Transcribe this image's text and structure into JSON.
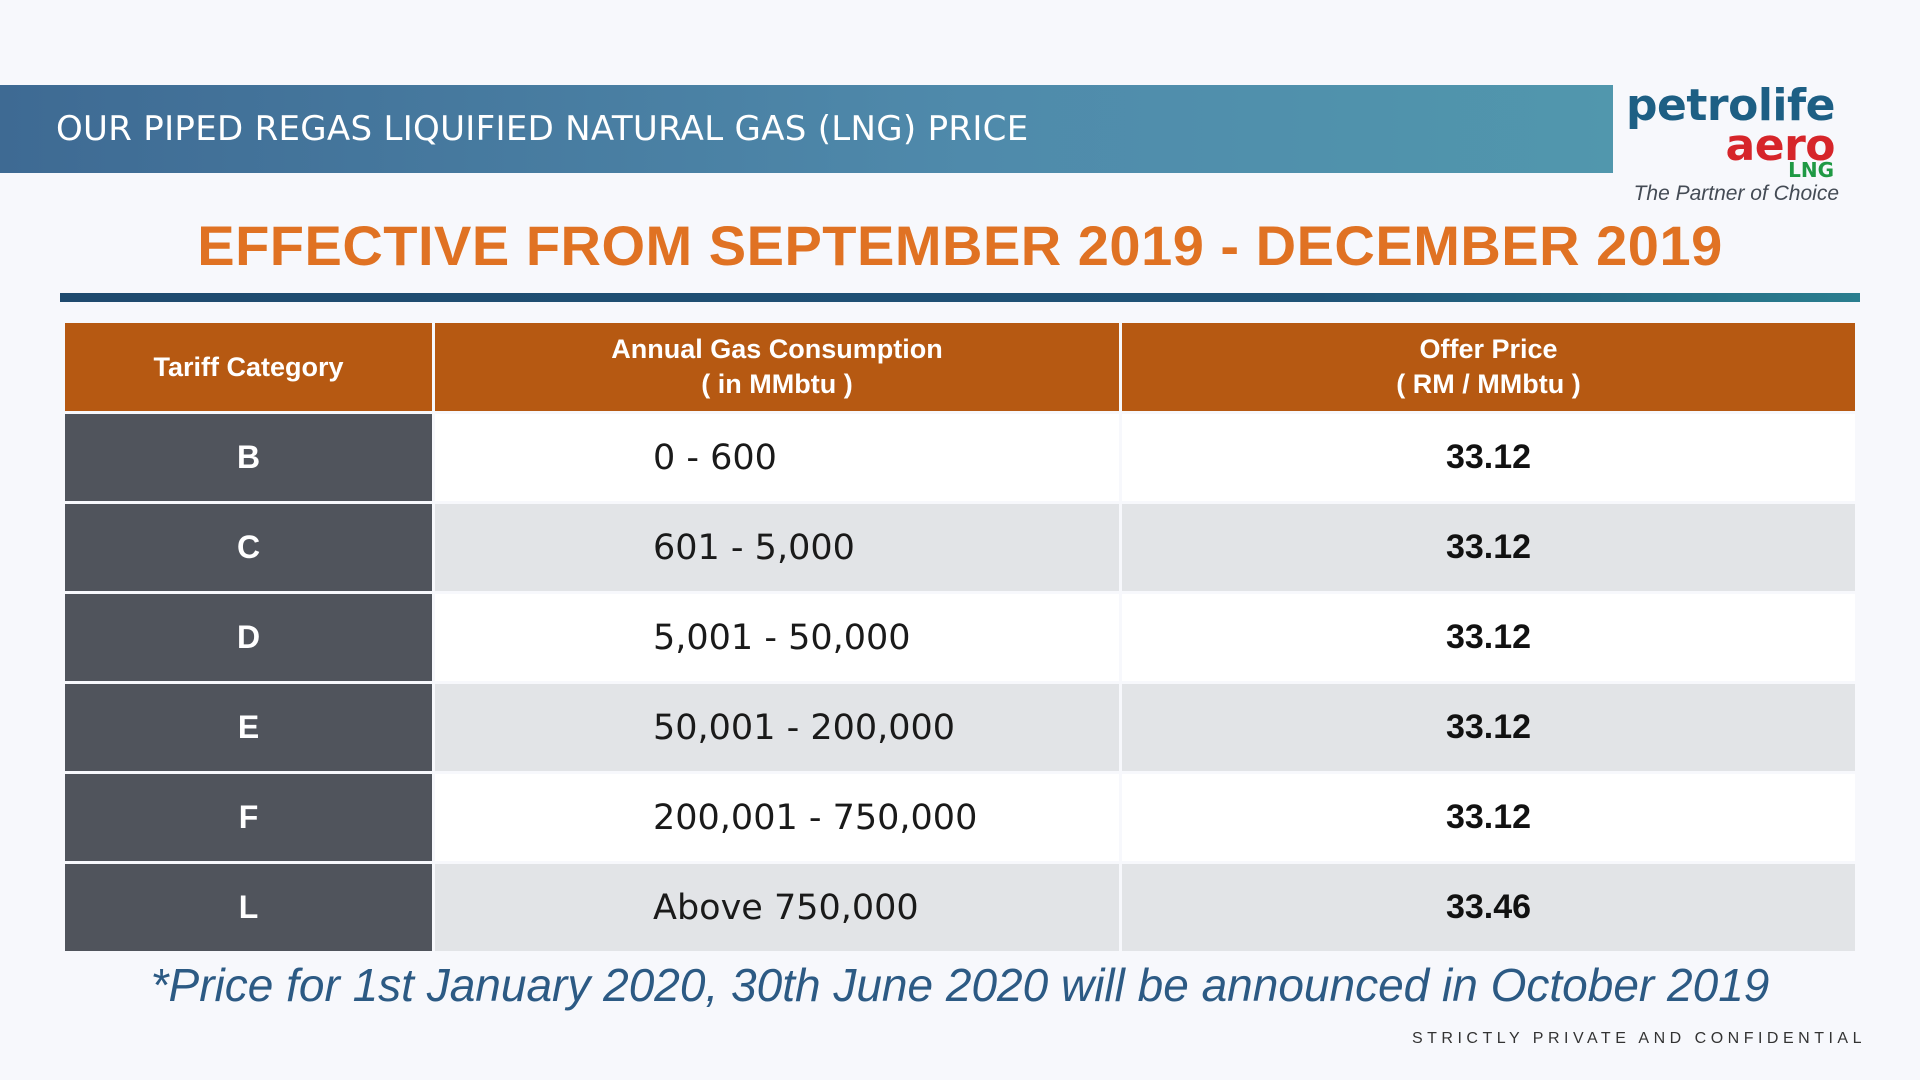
{
  "banner": {
    "title": "OUR PIPED REGAS LIQUIFIED NATURAL GAS (LNG) PRICE"
  },
  "logo": {
    "line1": "petrolife",
    "line2": "aero",
    "line3": "LNG",
    "tagline": "The Partner of Choice",
    "colors": {
      "petrolife": "#1d5f84",
      "aero": "#d6252a",
      "lng": "#1f9944"
    }
  },
  "headline": "EFFECTIVE FROM SEPTEMBER 2019 - DECEMBER 2019",
  "table": {
    "headers": {
      "category": "Tariff Category",
      "consumption_line1": "Annual Gas Consumption",
      "consumption_line2": "( in MMbtu )",
      "price_line1": "Offer Price",
      "price_line2": "( RM / MMbtu )"
    },
    "rows": [
      {
        "category": "B",
        "range": "0 - 600",
        "price": "33.12"
      },
      {
        "category": "C",
        "range": "601 - 5,000",
        "price": "33.12"
      },
      {
        "category": "D",
        "range": "5,001 - 50,000",
        "price": "33.12"
      },
      {
        "category": "E",
        "range": "50,001 - 200,000",
        "price": "33.12"
      },
      {
        "category": "F",
        "range": "200,001 - 750,000",
        "price": "33.12"
      },
      {
        "category": "L",
        "range": "Above 750,000",
        "price": "33.46"
      }
    ]
  },
  "footnote": "*Price for 1st January 2020, 30th June 2020 will be announced in October 2019",
  "confidential": "STRICTLY PRIVATE AND CONFIDENTIAL",
  "colors": {
    "accent_orange": "#e07223",
    "header_brown": "#b65912",
    "banner_blue": "#3e6a93",
    "category_gray": "#50545c",
    "footnote_blue": "#2c5a84"
  }
}
